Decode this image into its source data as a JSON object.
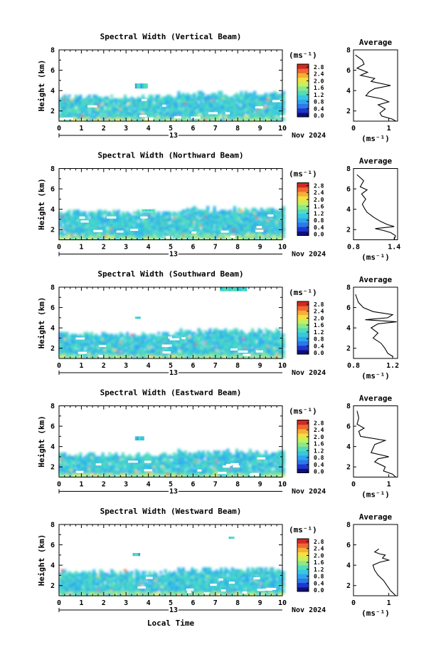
{
  "figure": {
    "xlabel": "Local Time",
    "date_left": "13",
    "date_right": "Nov 2024",
    "colorbar_unit": "(ms⁻¹)",
    "average_title": "Average",
    "average_xlabel": "(ms⁻¹)"
  },
  "colors": {
    "colormap": [
      "#10107a",
      "#2036d2",
      "#2a7ae8",
      "#31a4ee",
      "#36c8e0",
      "#52dcba",
      "#8ce88a",
      "#c8f05c",
      "#f4e042",
      "#f8ae38",
      "#f06a30",
      "#d02a22"
    ],
    "profile_line": "#000000"
  },
  "chart_data": [
    {
      "type": "heatmap",
      "title": "Spectral Width (Vertical Beam)",
      "ylabel": "Height (km)",
      "xlim": [
        0,
        10
      ],
      "ylim": [
        1,
        8
      ],
      "xticks": [
        0,
        1,
        2,
        3,
        4,
        5,
        6,
        7,
        8,
        9,
        10
      ],
      "yticks": [
        2,
        4,
        6,
        8
      ],
      "colorbar": {
        "range": [
          0,
          2.8
        ],
        "ticks": [
          "2.8",
          "2.4",
          "2.0",
          "1.6",
          "1.2",
          "0.8",
          "0.4",
          "0.0"
        ]
      },
      "cloud_top_km": 3.3,
      "islands": [
        {
          "t0": 3.4,
          "t1": 3.9,
          "h0": 4.2,
          "h1": 4.7
        }
      ],
      "average_profile": {
        "xlim": [
          0,
          1.25
        ],
        "xticks": [
          0,
          1
        ],
        "points": [
          [
            0.05,
            7.5
          ],
          [
            0.25,
            7.0
          ],
          [
            0.3,
            6.6
          ],
          [
            0.1,
            6.2
          ],
          [
            0.4,
            5.8
          ],
          [
            0.2,
            5.5
          ],
          [
            0.6,
            5.2
          ],
          [
            0.5,
            4.9
          ],
          [
            1.05,
            4.5
          ],
          [
            0.6,
            4.2
          ],
          [
            0.45,
            3.9
          ],
          [
            0.35,
            3.5
          ],
          [
            0.8,
            3.2
          ],
          [
            1.0,
            2.9
          ],
          [
            0.7,
            2.6
          ],
          [
            0.9,
            2.2
          ],
          [
            0.75,
            1.8
          ],
          [
            0.8,
            1.5
          ],
          [
            1.1,
            1.2
          ],
          [
            1.2,
            1.0
          ]
        ]
      }
    },
    {
      "type": "heatmap",
      "title": "Spectral Width (Northward Beam)",
      "ylabel": "Height (km)",
      "xlim": [
        0,
        10
      ],
      "ylim": [
        1,
        8
      ],
      "xticks": [
        0,
        1,
        2,
        3,
        4,
        5,
        6,
        7,
        8,
        9,
        10
      ],
      "yticks": [
        2,
        4,
        6,
        8
      ],
      "colorbar": {
        "range": [
          0,
          2.8
        ],
        "ticks": [
          "2.8",
          "2.4",
          "2.0",
          "1.6",
          "1.2",
          "0.8",
          "0.4",
          "0.0"
        ]
      },
      "cloud_top_km": 3.6,
      "islands": [
        {
          "t0": 3.7,
          "t1": 4.2,
          "h0": 3.8,
          "h1": 4.0
        }
      ],
      "average_profile": {
        "xlim": [
          0.8,
          1.45
        ],
        "xticks": [
          0.8,
          1.4
        ],
        "points": [
          [
            0.85,
            7.4
          ],
          [
            0.95,
            6.8
          ],
          [
            0.9,
            6.2
          ],
          [
            1.0,
            5.9
          ],
          [
            0.92,
            5.5
          ],
          [
            0.98,
            5.0
          ],
          [
            0.93,
            4.5
          ],
          [
            0.96,
            4.1
          ],
          [
            1.0,
            3.7
          ],
          [
            1.1,
            3.2
          ],
          [
            1.2,
            2.8
          ],
          [
            1.3,
            2.5
          ],
          [
            1.4,
            2.3
          ],
          [
            1.12,
            2.1
          ],
          [
            1.25,
            1.9
          ],
          [
            1.35,
            1.7
          ],
          [
            1.42,
            1.4
          ],
          [
            1.4,
            1.0
          ]
        ]
      }
    },
    {
      "type": "heatmap",
      "title": "Spectral Width (Southward Beam)",
      "ylabel": "Height (km)",
      "xlim": [
        0,
        10
      ],
      "ylim": [
        1,
        8
      ],
      "xticks": [
        0,
        1,
        2,
        3,
        4,
        5,
        6,
        7,
        8,
        9,
        10
      ],
      "yticks": [
        2,
        4,
        6,
        8
      ],
      "colorbar": {
        "range": [
          0,
          2.8
        ],
        "ticks": [
          "2.8",
          "2.4",
          "2.0",
          "1.6",
          "1.2",
          "0.8",
          "0.4",
          "0.0"
        ]
      },
      "cloud_top_km": 3.3,
      "islands": [
        {
          "t0": 7.2,
          "t1": 8.4,
          "h0": 7.6,
          "h1": 8.0
        },
        {
          "t0": 3.4,
          "t1": 3.6,
          "h0": 4.9,
          "h1": 5.1
        }
      ],
      "average_profile": {
        "xlim": [
          0.8,
          1.25
        ],
        "xticks": [
          0.8,
          1.2
        ],
        "points": [
          [
            0.82,
            7.3
          ],
          [
            0.85,
            6.5
          ],
          [
            0.9,
            6.0
          ],
          [
            1.0,
            5.6
          ],
          [
            1.2,
            5.3
          ],
          [
            1.15,
            5.0
          ],
          [
            0.92,
            4.8
          ],
          [
            1.24,
            4.6
          ],
          [
            1.05,
            4.4
          ],
          [
            0.98,
            4.0
          ],
          [
            1.05,
            3.5
          ],
          [
            1.0,
            3.0
          ],
          [
            1.08,
            2.5
          ],
          [
            1.12,
            2.0
          ],
          [
            1.15,
            1.5
          ],
          [
            1.2,
            1.2
          ]
        ]
      }
    },
    {
      "type": "heatmap",
      "title": "Spectral Width (Eastward Beam)",
      "ylabel": "Height (km)",
      "xlim": [
        0,
        10
      ],
      "ylim": [
        1,
        8
      ],
      "xticks": [
        0,
        1,
        2,
        3,
        4,
        5,
        6,
        7,
        8,
        9,
        10
      ],
      "yticks": [
        2,
        4,
        6,
        8
      ],
      "colorbar": {
        "range": [
          0,
          2.8
        ],
        "ticks": [
          "2.8",
          "2.4",
          "2.0",
          "1.6",
          "1.2",
          "0.8",
          "0.4",
          "0.0"
        ]
      },
      "cloud_top_km": 3.1,
      "islands": [
        {
          "t0": 3.4,
          "t1": 3.8,
          "h0": 4.6,
          "h1": 5.0
        }
      ],
      "average_profile": {
        "xlim": [
          0,
          1.25
        ],
        "xticks": [
          0,
          1
        ],
        "points": [
          [
            0.1,
            7.5
          ],
          [
            0.15,
            6.8
          ],
          [
            0.1,
            6.2
          ],
          [
            0.3,
            5.8
          ],
          [
            0.15,
            5.5
          ],
          [
            0.2,
            5.0
          ],
          [
            0.9,
            4.6
          ],
          [
            0.6,
            4.2
          ],
          [
            0.55,
            3.8
          ],
          [
            0.5,
            3.4
          ],
          [
            1.0,
            3.0
          ],
          [
            0.7,
            2.8
          ],
          [
            0.6,
            2.5
          ],
          [
            0.9,
            2.0
          ],
          [
            0.85,
            1.6
          ],
          [
            1.1,
            1.3
          ],
          [
            1.2,
            1.0
          ]
        ]
      }
    },
    {
      "type": "heatmap",
      "title": "Spectral Width (Westward Beam)",
      "ylabel": "Height (km)",
      "xlim": [
        0,
        10
      ],
      "ylim": [
        1,
        8
      ],
      "xticks": [
        0,
        1,
        2,
        3,
        4,
        5,
        6,
        7,
        8,
        9,
        10
      ],
      "yticks": [
        2,
        4,
        6,
        8
      ],
      "colorbar": {
        "range": [
          0,
          2.8
        ],
        "ticks": [
          "2.8",
          "2.4",
          "2.0",
          "1.6",
          "1.2",
          "0.8",
          "0.4",
          "0.0"
        ]
      },
      "cloud_top_km": 3.2,
      "islands": [
        {
          "t0": 3.3,
          "t1": 3.6,
          "h0": 4.9,
          "h1": 5.2
        },
        {
          "t0": 7.6,
          "t1": 7.8,
          "h0": 6.6,
          "h1": 6.8
        }
      ],
      "average_profile": {
        "xlim": [
          0,
          1.25
        ],
        "xticks": [
          0,
          1
        ],
        "points": [
          [
            0.72,
            5.6
          ],
          [
            0.6,
            5.3
          ],
          [
            0.75,
            5.1
          ],
          [
            0.9,
            5.0
          ],
          [
            0.82,
            4.7
          ],
          [
            1.0,
            4.5
          ],
          [
            0.75,
            4.3
          ],
          [
            0.55,
            4.0
          ],
          [
            0.6,
            3.5
          ],
          [
            0.7,
            3.0
          ],
          [
            0.85,
            2.5
          ],
          [
            0.95,
            2.0
          ],
          [
            1.05,
            1.5
          ],
          [
            1.2,
            1.0
          ]
        ]
      }
    }
  ]
}
